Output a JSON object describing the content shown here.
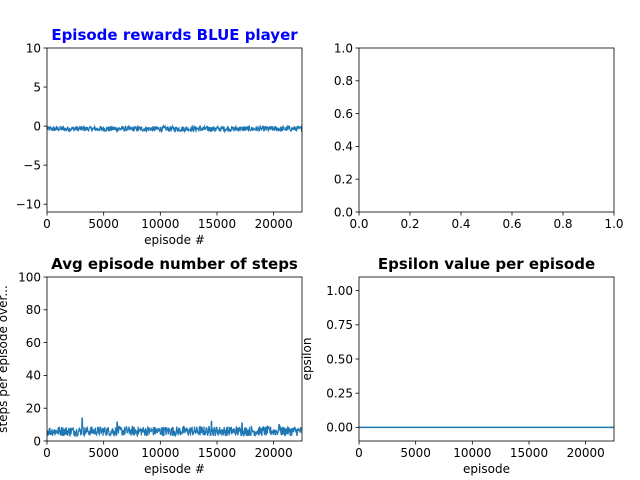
{
  "chart_data": [
    {
      "id": "rewards",
      "type": "line",
      "title": "Episode rewards BLUE player",
      "title_color": "#0000ff",
      "xlabel": "episode #",
      "ylabel": "",
      "xlim": [
        0,
        22500
      ],
      "ylim": [
        -11,
        10
      ],
      "xticks": [
        0,
        5000,
        10000,
        15000,
        20000
      ],
      "xtick_labels": [
        "0",
        "5000",
        "10000",
        "15000",
        "20000"
      ],
      "yticks": [
        -10,
        -5,
        0,
        5,
        10
      ],
      "ytick_labels": [
        "−10",
        "−5",
        "0",
        "5",
        "10"
      ],
      "grid": false,
      "series": [
        {
          "color": "#1f77b4",
          "x": [
            0,
            22500
          ],
          "y_mean": -0.3,
          "y_band": [
            -0.7,
            0.0
          ]
        }
      ]
    },
    {
      "id": "empty",
      "type": "line",
      "title": "",
      "xlabel": "",
      "ylabel": "",
      "xlim": [
        0,
        1
      ],
      "ylim": [
        0,
        1
      ],
      "xticks": [
        0,
        0.2,
        0.4,
        0.6,
        0.8,
        1.0
      ],
      "xtick_labels": [
        "0.0",
        "0.2",
        "0.4",
        "0.6",
        "0.8",
        "1.0"
      ],
      "yticks": [
        0,
        0.2,
        0.4,
        0.6,
        0.8,
        1.0
      ],
      "ytick_labels": [
        "0.0",
        "0.2",
        "0.4",
        "0.6",
        "0.8",
        "1.0"
      ],
      "grid": false,
      "series": []
    },
    {
      "id": "steps",
      "type": "line",
      "title": "Avg episode number of steps",
      "title_color": "#000000",
      "xlabel": "episode #",
      "ylabel": "steps per episode over...",
      "xlim": [
        0,
        22500
      ],
      "ylim": [
        0,
        100
      ],
      "xticks": [
        0,
        5000,
        10000,
        15000,
        20000
      ],
      "xtick_labels": [
        "0",
        "5000",
        "10000",
        "15000",
        "20000"
      ],
      "yticks": [
        0,
        20,
        40,
        60,
        80,
        100
      ],
      "ytick_labels": [
        "0",
        "20",
        "40",
        "60",
        "80",
        "100"
      ],
      "grid": false,
      "series": [
        {
          "color": "#1f77b4",
          "x": [
            0,
            22500
          ],
          "y_mean": 5.5,
          "y_band": [
            3.0,
            9.0
          ],
          "peaks": [
            [
              3100,
              14
            ],
            [
              6200,
              11.5
            ],
            [
              14500,
              12
            ],
            [
              17200,
              11
            ],
            [
              20500,
              10
            ]
          ]
        }
      ]
    },
    {
      "id": "epsilon",
      "type": "line",
      "title": "Epsilon value per episode",
      "title_color": "#000000",
      "xlabel": "episode",
      "ylabel": "epsilon",
      "xlim": [
        0,
        22500
      ],
      "ylim": [
        -0.1,
        1.1
      ],
      "xticks": [
        0,
        5000,
        10000,
        15000,
        20000
      ],
      "xtick_labels": [
        "0",
        "5000",
        "10000",
        "15000",
        "20000"
      ],
      "yticks": [
        0.0,
        0.25,
        0.5,
        0.75,
        1.0
      ],
      "ytick_labels": [
        "0.00",
        "0.25",
        "0.50",
        "0.75",
        "1.00"
      ],
      "grid": false,
      "series": [
        {
          "color": "#1f77b4",
          "x": [
            0,
            22500
          ],
          "y": [
            0.0,
            0.0
          ]
        }
      ]
    }
  ]
}
